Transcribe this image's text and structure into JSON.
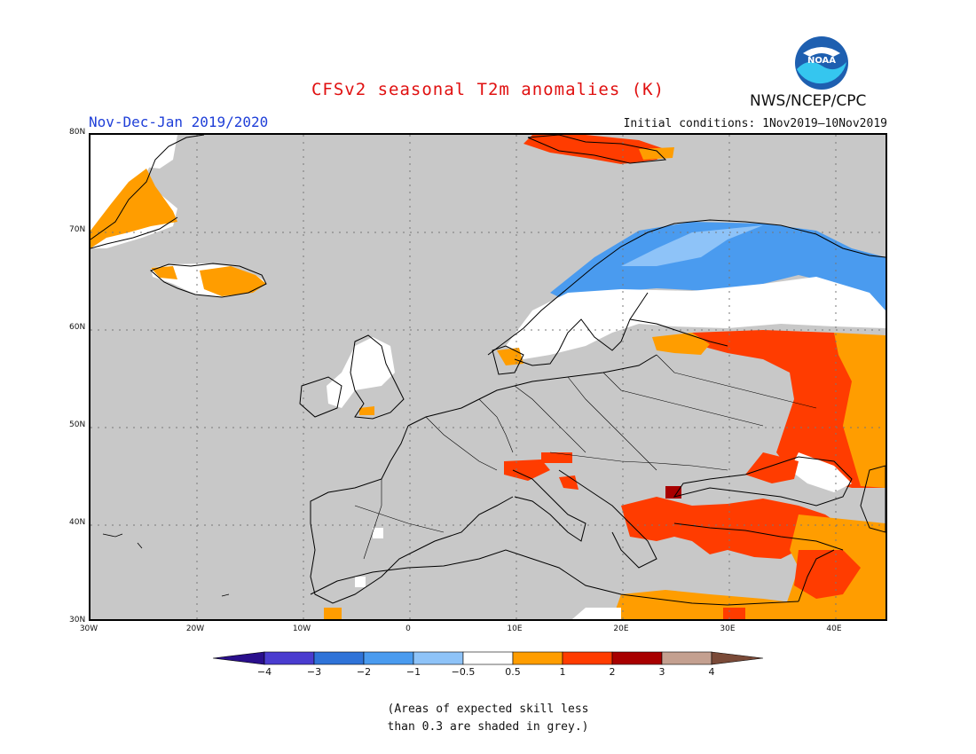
{
  "title": "CFSv2 seasonal T2m anomalies (K)",
  "period": "Nov-Dec-Jan 2019/2020",
  "initial_conditions": "Initial conditions: 1Nov2019—10Nov2019",
  "agency": "NWS/NCEP/CPC",
  "logo": {
    "text": "NOAA",
    "icon": "noaa-logo-icon"
  },
  "map": {
    "region": "Europe",
    "lon_range": [
      -30,
      45
    ],
    "lat_range": [
      30,
      80
    ],
    "lat_labels": [
      "80N",
      "70N",
      "60N",
      "50N",
      "40N",
      "30N"
    ],
    "lon_labels": [
      "30W",
      "20W",
      "10W",
      "0",
      "10E",
      "20E",
      "30E",
      "40E"
    ],
    "background_color": "#c8c8c8"
  },
  "colorbar": {
    "labels": [
      "−4",
      "−3",
      "−2",
      "−1",
      "−0.5",
      "0.5",
      "1",
      "2",
      "3",
      "4"
    ],
    "colors": [
      "#2a0f8c",
      "#4a3ccf",
      "#2f73d8",
      "#4a9bef",
      "#8ec3f8",
      "#ffffff",
      "#ff9d00",
      "#ff3c00",
      "#a80000",
      "#c4a090",
      "#7a4a38"
    ]
  },
  "note": {
    "line1": "(Areas of expected skill less",
    "line2": "than 0.3 are shaded in grey.)"
  }
}
